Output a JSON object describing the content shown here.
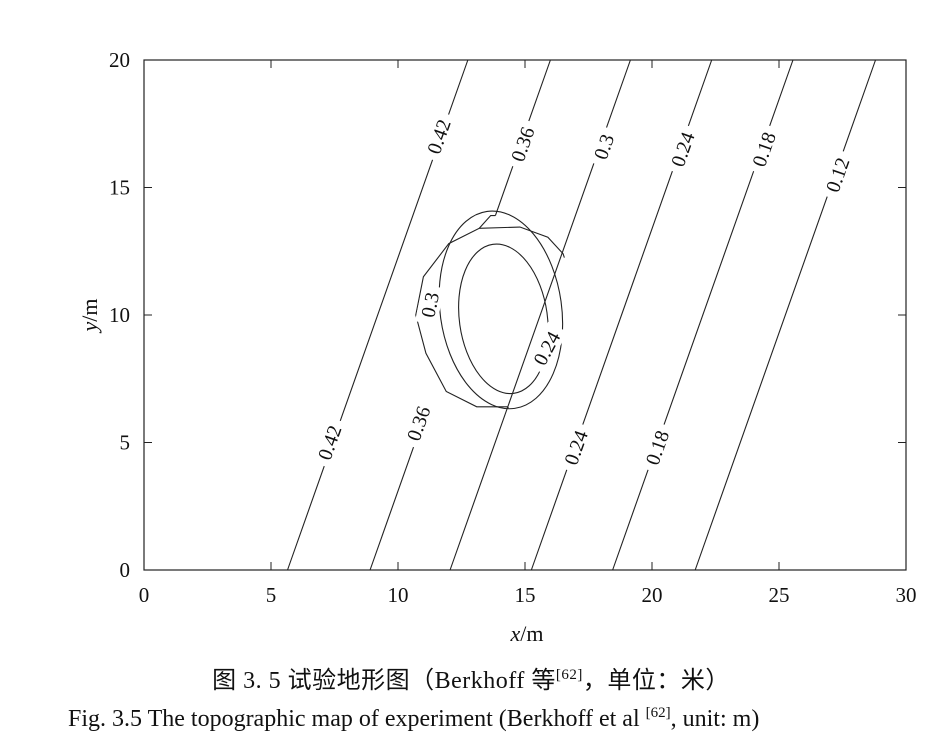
{
  "chart_data": {
    "type": "contour",
    "xlabel_var": "x",
    "xlabel_unit": "/m",
    "ylabel_var": "y",
    "ylabel_unit": "/m",
    "xlim": [
      0,
      30
    ],
    "ylim": [
      0,
      20
    ],
    "xticks": [
      0,
      5,
      10,
      15,
      20,
      25,
      30
    ],
    "yticks": [
      0,
      5,
      10,
      15,
      20
    ],
    "xtick_labels": [
      "0",
      "5",
      "10",
      "15",
      "20",
      "25",
      "30"
    ],
    "ytick_labels": [
      "0",
      "5",
      "10",
      "15",
      "20"
    ],
    "grid": false,
    "slope_direction": "y = (x - x0) * 20 / 7.1",
    "background_contours": [
      {
        "level": "0.42",
        "x_at_y0": 5.65,
        "x_at_y20": 12.75,
        "labels": [
          {
            "text": "0.42",
            "x": 7.3,
            "y": 5.0
          },
          {
            "text": "0.42",
            "x": 11.6,
            "y": 17.0
          }
        ]
      },
      {
        "level": "0.36",
        "x_at_y0": 8.9,
        "x_at_y20": 16.0,
        "labels": [
          {
            "text": "0.36",
            "x": 10.8,
            "y": 5.75
          },
          {
            "text": "0.36",
            "x": 14.9,
            "y": 16.7
          }
        ]
      },
      {
        "level": "0.3",
        "x_at_y0": 12.05,
        "x_at_y20": 19.15,
        "labels": [
          {
            "text": "0.3",
            "x": 18.1,
            "y": 16.6
          }
        ]
      },
      {
        "level": "0.24",
        "x_at_y0": 15.25,
        "x_at_y20": 22.35,
        "labels": [
          {
            "text": "0.24",
            "x": 17.0,
            "y": 4.8
          },
          {
            "text": "0.24",
            "x": 21.2,
            "y": 16.5
          }
        ]
      },
      {
        "level": "0.18",
        "x_at_y0": 18.45,
        "x_at_y20": 25.55,
        "labels": [
          {
            "text": "0.18",
            "x": 20.2,
            "y": 4.8
          },
          {
            "text": "0.18",
            "x": 24.4,
            "y": 16.5
          }
        ]
      },
      {
        "level": "0.12",
        "x_at_y0": 21.7,
        "x_at_y20": 28.8,
        "labels": [
          {
            "text": "0.12",
            "x": 27.3,
            "y": 15.5
          }
        ]
      }
    ],
    "shoal_contours": [
      {
        "level": "0.3",
        "shape": "shifted closed ring joining 0.36 and 0.3 lines",
        "points": [
          [
            14.3,
            6.4
          ],
          [
            13.1,
            6.4
          ],
          [
            11.9,
            7.0
          ],
          [
            11.1,
            8.5
          ],
          [
            10.7,
            10.0
          ],
          [
            11.0,
            11.5
          ],
          [
            12.0,
            12.8
          ],
          [
            13.2,
            13.4
          ],
          [
            14.8,
            13.45
          ],
          [
            15.9,
            13.05
          ],
          [
            16.5,
            12.4
          ]
        ],
        "ends": {
          "to_0_36_lower": [
            14.35,
            6.35
          ],
          "to_0_3_upper": [
            16.55,
            12.25
          ],
          "top_left_connect": [
            13.65,
            13.9
          ]
        },
        "labels": [
          {
            "text": "0.3",
            "x": 11.25,
            "y": 10.4
          }
        ]
      },
      {
        "level": "0.3 inner",
        "center": [
          14.05,
          10.2
        ],
        "rx": 4.35,
        "ry": 3.9
      },
      {
        "level": "0.24 ring",
        "center": [
          14.15,
          9.85
        ],
        "rx": 3.15,
        "ry": 2.95,
        "labels": [
          {
            "text": "0.24",
            "x": 15.85,
            "y": 8.7
          }
        ]
      }
    ]
  },
  "captions": {
    "cn_prefix": "图 3. 5  试验地形图（Berkhoff 等",
    "cn_ref": "[62]",
    "cn_suffix": "，单位：米）",
    "en_prefix": "Fig. 3.5    The topographic map of experiment (Berkhoff et al ",
    "en_ref": "[62]",
    "en_suffix": ", unit: m)"
  }
}
